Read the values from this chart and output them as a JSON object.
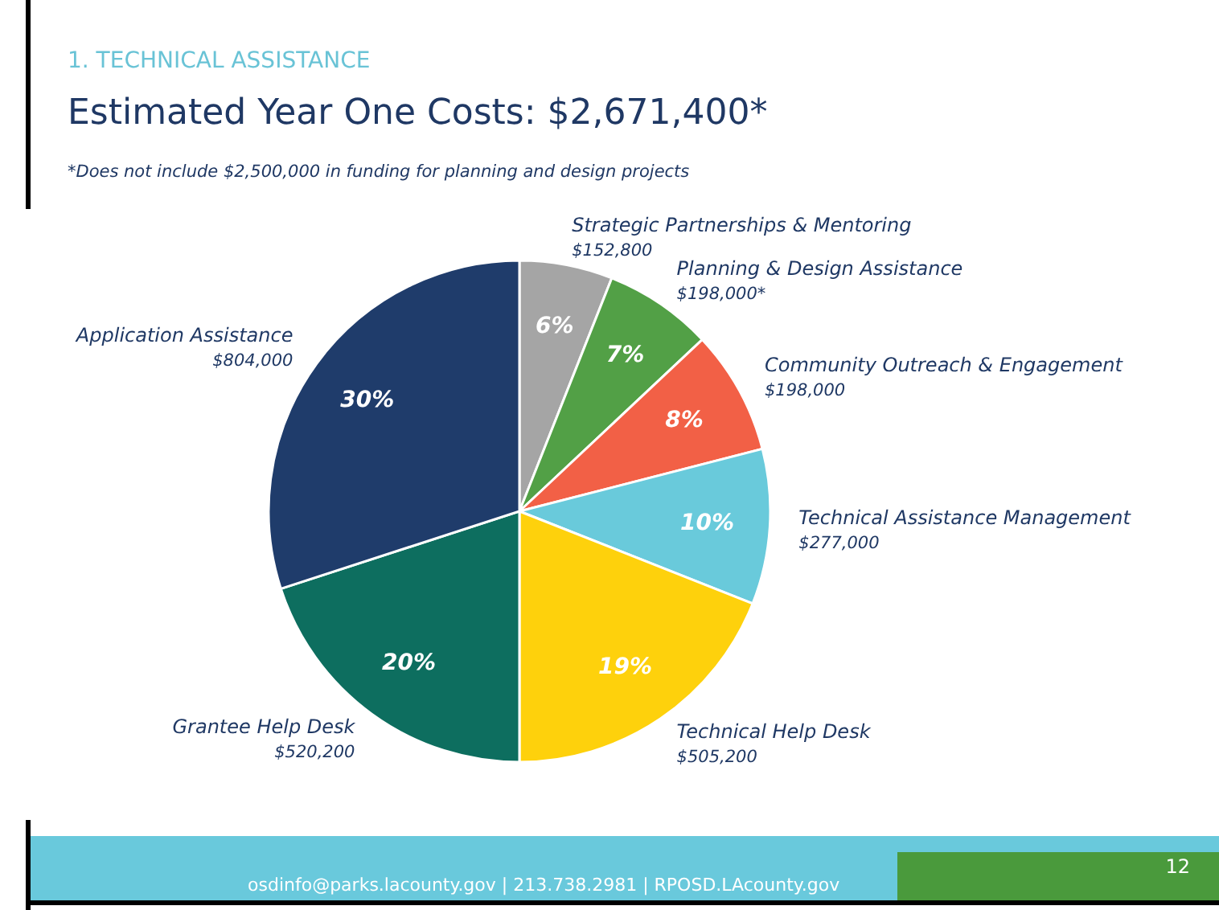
{
  "chart_data": {
    "type": "pie",
    "title": "Estimated Year One Costs: $2,671,400*",
    "subtitle": "*Does not include $2,500,000 in funding for planning and design projects",
    "categories": [
      "Strategic Partnerships & Mentoring",
      "Planning & Design Assistance",
      "Community Outreach & Engagement",
      "Technical Assistance Management",
      "Technical Help Desk",
      "Grantee Help Desk",
      "Application Assistance"
    ],
    "values": [
      6,
      7,
      8,
      10,
      19,
      20,
      30
    ],
    "colors": [
      "#a5a5a5",
      "#52a046",
      "#f26046",
      "#69cadb",
      "#fed10c",
      "#0d6e5f",
      "#1f3c6b"
    ],
    "value_labels": [
      "6%",
      "7%",
      "8%",
      "10%",
      "19%",
      "20%",
      "30%"
    ],
    "annotations": [
      "1. TECHNICAL ASSISTANCE",
      {
        "text": "$152,800",
        "x": "Strategic Partnerships & Mentoring"
      },
      {
        "text": "$198,000*",
        "x": "Planning & Design Assistance"
      },
      {
        "text": "$198,000",
        "x": "Community Outreach & Engagement"
      },
      {
        "text": "$277,000",
        "x": "Technical Assistance Management"
      },
      {
        "text": "$505,200",
        "x": "Technical Help Desk"
      },
      {
        "text": "$520,200",
        "x": "Grantee Help Desk"
      },
      {
        "text": "$804,000",
        "x": "Application Assistance"
      },
      "osdinfo@parks.lacounty.gov | 213.738.2981 | RPOSD.LAcounty.gov",
      "12"
    ]
  }
}
